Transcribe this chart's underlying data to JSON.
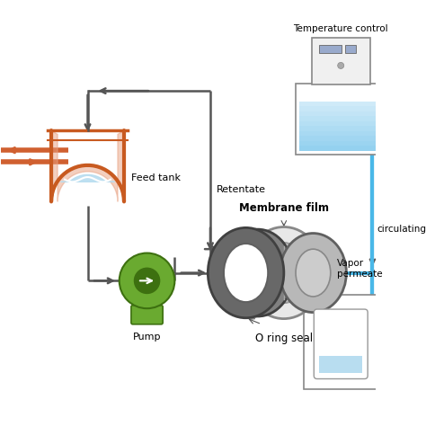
{
  "feed_tank_color": "#c85a20",
  "feed_tank_jacket": "#e8a080",
  "pump_color": "#6aaa30",
  "pump_dark": "#3d7010",
  "pipe_color": "#555555",
  "orange_pipe": "#d06030",
  "blue_pipe_color": "#4ab8e8",
  "water_color": "#b8ddf0",
  "water_dark": "#80c8e8",
  "temp_ctrl_water": "#88ccee",
  "temp_ctrl_top": "#e0e8f0",
  "labels": {
    "feed_tank": "Feed tank",
    "pump": "Pump",
    "membrane": "Membrane film",
    "oring": "O ring seal",
    "retentate": "Retentate",
    "vapor": "Vapor\npermeate",
    "circulating": "circulating",
    "temp_ctrl": "Temperature control"
  },
  "bg_color": "#ffffff"
}
